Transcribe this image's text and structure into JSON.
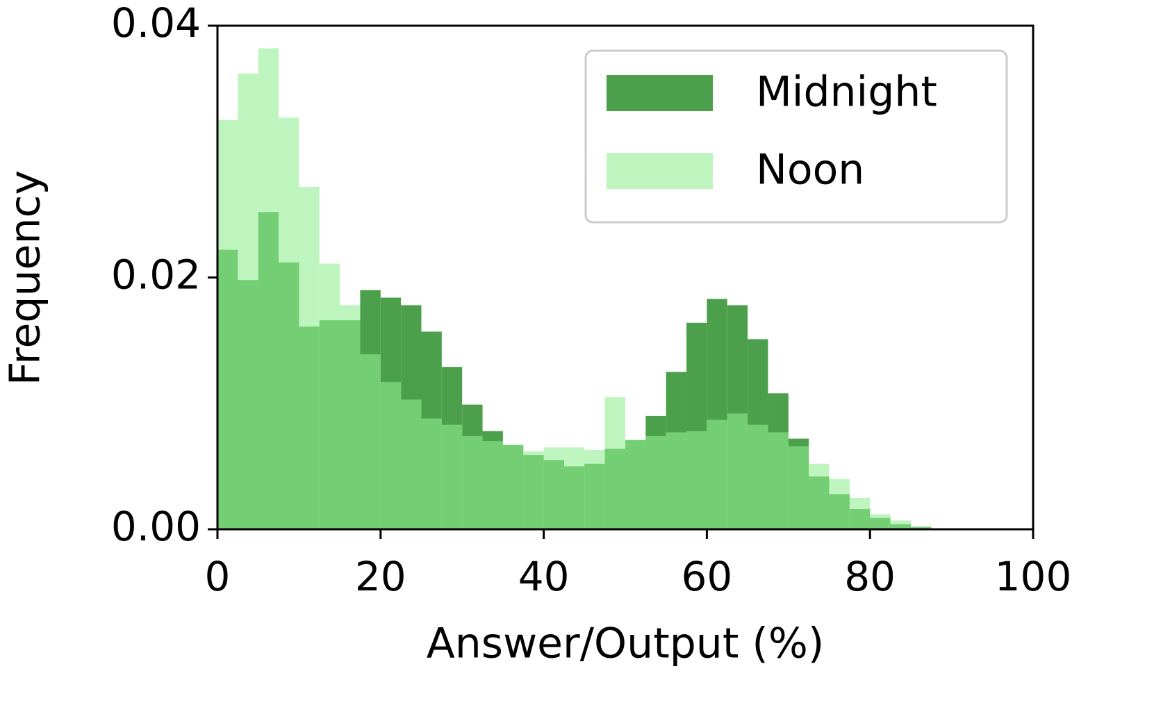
{
  "chart_data": {
    "type": "histogram",
    "xlabel": "Answer/Output (%)",
    "ylabel": "Frequency",
    "bins": [
      0,
      2.5,
      5,
      7.5,
      10,
      12.5,
      15,
      17.5,
      20,
      22.5,
      25,
      27.5,
      30,
      32.5,
      35,
      37.5,
      40,
      42.5,
      45,
      47.5,
      50,
      52.5,
      55,
      57.5,
      60,
      62.5,
      65,
      67.5,
      70,
      72.5,
      75,
      77.5,
      80,
      82.5,
      85,
      87.5,
      90,
      92.5,
      95,
      97.5,
      100
    ],
    "series": [
      {
        "name": "Midnight",
        "color": "#4ca04c",
        "opacity": 1,
        "values": [
          0.0222,
          0.0198,
          0.0252,
          0.0212,
          0.0161,
          0.0166,
          0.0166,
          0.019,
          0.0184,
          0.0178,
          0.0157,
          0.0129,
          0.0099,
          0.0078,
          0.0067,
          0.0059,
          0.0055,
          0.005,
          0.0052,
          0.0064,
          0.0071,
          0.009,
          0.0125,
          0.0164,
          0.0183,
          0.0178,
          0.0151,
          0.0108,
          0.0072,
          0.0042,
          0.0028,
          0.0016,
          0.0009,
          0.0004,
          0.0002,
          0,
          0,
          0,
          0,
          0
        ]
      },
      {
        "name": "Noon",
        "color": "#90ee90",
        "opacity": 0.59,
        "values": [
          0.0325,
          0.0362,
          0.0382,
          0.0327,
          0.0272,
          0.0211,
          0.0178,
          0.0139,
          0.0117,
          0.0103,
          0.0088,
          0.0083,
          0.0074,
          0.007,
          0.0067,
          0.0062,
          0.0065,
          0.0065,
          0.0063,
          0.0105,
          0.0071,
          0.0074,
          0.0077,
          0.0078,
          0.0087,
          0.0092,
          0.0083,
          0.0077,
          0.0066,
          0.0052,
          0.004,
          0.0025,
          0.0012,
          0.0007,
          0.0002,
          0,
          0,
          0,
          0,
          0
        ]
      }
    ],
    "xlim": [
      0,
      100
    ],
    "xticks": [
      0,
      20,
      40,
      60,
      80,
      100
    ],
    "ylim": [
      0,
      0.04
    ],
    "yticks": [
      {
        "value": 0,
        "label": "0.00"
      },
      0.02,
      0.04
    ],
    "legend": "upper right",
    "grid": false
  }
}
